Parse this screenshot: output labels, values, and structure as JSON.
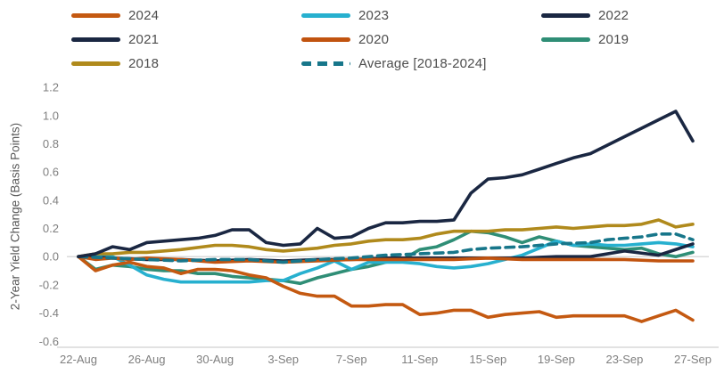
{
  "chart_data": {
    "type": "line",
    "title": "",
    "xlabel": "",
    "ylabel": "2-Year Yield Change (Basis Points)",
    "ylim": [
      -0.6,
      1.2
    ],
    "y_ticks": [
      {
        "value": 1.2,
        "label": "1.2"
      },
      {
        "value": 1.0,
        "label": "1.0"
      },
      {
        "value": 0.8,
        "label": "0.8"
      },
      {
        "value": 0.6,
        "label": "0.6"
      },
      {
        "value": 0.4,
        "label": "0.4"
      },
      {
        "value": 0.2,
        "label": "0.2"
      },
      {
        "value": 0.0,
        "label": "0.0"
      },
      {
        "value": -0.2,
        "label": "-0.2"
      },
      {
        "value": -0.4,
        "label": "-0.4"
      },
      {
        "value": -0.6,
        "label": "-0.6"
      }
    ],
    "x_domain_days": [
      0,
      36
    ],
    "x_ticks": [
      {
        "day": 0,
        "label": "22-Aug"
      },
      {
        "day": 4,
        "label": "26-Aug"
      },
      {
        "day": 8,
        "label": "30-Aug"
      },
      {
        "day": 12,
        "label": "3-Sep"
      },
      {
        "day": 16,
        "label": "7-Sep"
      },
      {
        "day": 20,
        "label": "11-Sep"
      },
      {
        "day": 24,
        "label": "15-Sep"
      },
      {
        "day": 28,
        "label": "19-Sep"
      },
      {
        "day": 32,
        "label": "23-Sep"
      },
      {
        "day": 36,
        "label": "27-Sep"
      }
    ],
    "grid": "zero-line-only",
    "legend_position": "top",
    "axis_line_color": "#d9d9d9",
    "tick_text_color": "#7f7f7f",
    "legend_text_color": "#4d4d4d",
    "draw_order": [
      "2019",
      "2023",
      "2018",
      "2022",
      "2020",
      "2024",
      "Average [2018-2024]",
      "2021"
    ],
    "series": [
      {
        "name": "2024",
        "color": "#C45911",
        "dash": false,
        "points": [
          [
            0,
            0
          ],
          [
            1,
            -0.1
          ],
          [
            2,
            -0.06
          ],
          [
            3,
            -0.04
          ],
          [
            4,
            -0.07
          ],
          [
            5,
            -0.08
          ],
          [
            6,
            -0.12
          ],
          [
            7,
            -0.09
          ],
          [
            8,
            -0.09
          ],
          [
            9,
            -0.1
          ],
          [
            10,
            -0.13
          ],
          [
            11,
            -0.15
          ],
          [
            12,
            -0.21
          ],
          [
            13,
            -0.26
          ],
          [
            14,
            -0.28
          ],
          [
            15,
            -0.28
          ],
          [
            16,
            -0.35
          ],
          [
            17,
            -0.35
          ],
          [
            18,
            -0.34
          ],
          [
            19,
            -0.34
          ],
          [
            20,
            -0.41
          ],
          [
            21,
            -0.4
          ],
          [
            22,
            -0.38
          ],
          [
            23,
            -0.38
          ],
          [
            24,
            -0.43
          ],
          [
            25,
            -0.41
          ],
          [
            26,
            -0.4
          ],
          [
            27,
            -0.39
          ],
          [
            28,
            -0.43
          ],
          [
            29,
            -0.42
          ],
          [
            30,
            -0.42
          ],
          [
            31,
            -0.42
          ],
          [
            32,
            -0.42
          ],
          [
            33,
            -0.46
          ],
          [
            34,
            -0.42
          ],
          [
            35,
            -0.38
          ],
          [
            36,
            -0.45
          ]
        ]
      },
      {
        "name": "2023",
        "color": "#27B0CF",
        "dash": false,
        "points": [
          [
            0,
            0
          ],
          [
            1,
            0.0
          ],
          [
            2,
            0.0
          ],
          [
            3,
            -0.06
          ],
          [
            4,
            -0.13
          ],
          [
            5,
            -0.16
          ],
          [
            6,
            -0.18
          ],
          [
            7,
            -0.18
          ],
          [
            8,
            -0.18
          ],
          [
            9,
            -0.18
          ],
          [
            10,
            -0.18
          ],
          [
            11,
            -0.17
          ],
          [
            12,
            -0.17
          ],
          [
            13,
            -0.12
          ],
          [
            14,
            -0.08
          ],
          [
            15,
            -0.03
          ],
          [
            16,
            -0.09
          ],
          [
            17,
            -0.04
          ],
          [
            18,
            -0.04
          ],
          [
            19,
            -0.04
          ],
          [
            20,
            -0.05
          ],
          [
            21,
            -0.07
          ],
          [
            22,
            -0.08
          ],
          [
            23,
            -0.07
          ],
          [
            24,
            -0.05
          ],
          [
            25,
            -0.02
          ],
          [
            26,
            0.01
          ],
          [
            27,
            0.06
          ],
          [
            28,
            0.11
          ],
          [
            29,
            0.08
          ],
          [
            30,
            0.09
          ],
          [
            31,
            0.08
          ],
          [
            32,
            0.08
          ],
          [
            33,
            0.09
          ],
          [
            34,
            0.1
          ],
          [
            35,
            0.09
          ],
          [
            36,
            0.07
          ]
        ]
      },
      {
        "name": "2022",
        "color": "#1A2742",
        "dash": false,
        "points": [
          [
            0,
            0
          ],
          [
            2,
            -0.01
          ],
          [
            4,
            -0.02
          ],
          [
            6,
            -0.02
          ],
          [
            8,
            -0.03
          ],
          [
            10,
            -0.02
          ],
          [
            12,
            -0.03
          ],
          [
            14,
            -0.02
          ],
          [
            16,
            -0.02
          ],
          [
            18,
            -0.01
          ],
          [
            20,
            -0.01
          ],
          [
            22,
            -0.01
          ],
          [
            24,
            -0.01
          ],
          [
            26,
            -0.01
          ],
          [
            28,
            0.0
          ],
          [
            30,
            0.0
          ],
          [
            32,
            0.04
          ],
          [
            34,
            0.01
          ],
          [
            36,
            0.09
          ]
        ]
      },
      {
        "name": "2021",
        "color": "#1A2742",
        "dash": false,
        "points": [
          [
            0,
            0
          ],
          [
            1,
            0.02
          ],
          [
            2,
            0.07
          ],
          [
            3,
            0.05
          ],
          [
            4,
            0.1
          ],
          [
            5,
            0.11
          ],
          [
            6,
            0.12
          ],
          [
            7,
            0.13
          ],
          [
            8,
            0.15
          ],
          [
            9,
            0.19
          ],
          [
            10,
            0.19
          ],
          [
            11,
            0.1
          ],
          [
            12,
            0.08
          ],
          [
            13,
            0.09
          ],
          [
            14,
            0.2
          ],
          [
            15,
            0.13
          ],
          [
            16,
            0.14
          ],
          [
            17,
            0.2
          ],
          [
            18,
            0.24
          ],
          [
            19,
            0.24
          ],
          [
            20,
            0.25
          ],
          [
            21,
            0.25
          ],
          [
            22,
            0.26
          ],
          [
            23,
            0.45
          ],
          [
            24,
            0.55
          ],
          [
            25,
            0.56
          ],
          [
            26,
            0.58
          ],
          [
            27,
            0.62
          ],
          [
            28,
            0.66
          ],
          [
            29,
            0.7
          ],
          [
            30,
            0.73
          ],
          [
            31,
            0.79
          ],
          [
            32,
            0.85
          ],
          [
            33,
            0.91
          ],
          [
            34,
            0.97
          ],
          [
            35,
            1.03
          ],
          [
            36,
            0.82
          ]
        ]
      },
      {
        "name": "2020",
        "color": "#C1530F",
        "dash": false,
        "points": [
          [
            0,
            0
          ],
          [
            1,
            -0.02
          ],
          [
            2,
            -0.01
          ],
          [
            3,
            -0.02
          ],
          [
            4,
            -0.01
          ],
          [
            6,
            -0.02
          ],
          [
            8,
            -0.04
          ],
          [
            10,
            -0.03
          ],
          [
            12,
            -0.04
          ],
          [
            14,
            -0.03
          ],
          [
            16,
            -0.02
          ],
          [
            18,
            -0.02
          ],
          [
            20,
            -0.02
          ],
          [
            22,
            -0.02
          ],
          [
            24,
            -0.01
          ],
          [
            26,
            -0.02
          ],
          [
            28,
            -0.02
          ],
          [
            30,
            -0.02
          ],
          [
            32,
            -0.02
          ],
          [
            34,
            -0.03
          ],
          [
            36,
            -0.03
          ]
        ]
      },
      {
        "name": "2019",
        "color": "#2F8E76",
        "dash": false,
        "points": [
          [
            0,
            0
          ],
          [
            1,
            -0.09
          ],
          [
            2,
            -0.06
          ],
          [
            3,
            -0.07
          ],
          [
            4,
            -0.09
          ],
          [
            5,
            -0.1
          ],
          [
            6,
            -0.1
          ],
          [
            7,
            -0.12
          ],
          [
            8,
            -0.12
          ],
          [
            9,
            -0.14
          ],
          [
            10,
            -0.15
          ],
          [
            11,
            -0.16
          ],
          [
            12,
            -0.17
          ],
          [
            13,
            -0.19
          ],
          [
            14,
            -0.15
          ],
          [
            15,
            -0.12
          ],
          [
            16,
            -0.09
          ],
          [
            17,
            -0.07
          ],
          [
            18,
            -0.04
          ],
          [
            19,
            -0.02
          ],
          [
            20,
            0.05
          ],
          [
            21,
            0.07
          ],
          [
            22,
            0.12
          ],
          [
            23,
            0.18
          ],
          [
            24,
            0.17
          ],
          [
            25,
            0.14
          ],
          [
            26,
            0.1
          ],
          [
            27,
            0.14
          ],
          [
            28,
            0.11
          ],
          [
            29,
            0.08
          ],
          [
            30,
            0.07
          ],
          [
            31,
            0.06
          ],
          [
            32,
            0.05
          ],
          [
            33,
            0.06
          ],
          [
            34,
            0.02
          ],
          [
            35,
            0.0
          ],
          [
            36,
            0.03
          ]
        ]
      },
      {
        "name": "2018",
        "color": "#B08A1C",
        "dash": false,
        "points": [
          [
            0,
            0
          ],
          [
            1,
            0.02
          ],
          [
            2,
            0.02
          ],
          [
            3,
            0.03
          ],
          [
            4,
            0.03
          ],
          [
            6,
            0.05
          ],
          [
            8,
            0.08
          ],
          [
            9,
            0.08
          ],
          [
            10,
            0.07
          ],
          [
            11,
            0.05
          ],
          [
            12,
            0.04
          ],
          [
            13,
            0.05
          ],
          [
            14,
            0.06
          ],
          [
            15,
            0.08
          ],
          [
            16,
            0.09
          ],
          [
            17,
            0.11
          ],
          [
            18,
            0.12
          ],
          [
            19,
            0.12
          ],
          [
            20,
            0.13
          ],
          [
            21,
            0.16
          ],
          [
            22,
            0.18
          ],
          [
            23,
            0.18
          ],
          [
            24,
            0.18
          ],
          [
            25,
            0.19
          ],
          [
            26,
            0.19
          ],
          [
            27,
            0.2
          ],
          [
            28,
            0.21
          ],
          [
            29,
            0.2
          ],
          [
            30,
            0.21
          ],
          [
            31,
            0.22
          ],
          [
            32,
            0.22
          ],
          [
            33,
            0.23
          ],
          [
            34,
            0.26
          ],
          [
            35,
            0.21
          ],
          [
            36,
            0.23
          ]
        ]
      },
      {
        "name": "Average [2018-2024]",
        "color": "#17768A",
        "dash": true,
        "points": [
          [
            0,
            0
          ],
          [
            2,
            -0.01
          ],
          [
            4,
            -0.02
          ],
          [
            6,
            -0.03
          ],
          [
            8,
            -0.02
          ],
          [
            10,
            -0.02
          ],
          [
            11,
            -0.03
          ],
          [
            12,
            -0.04
          ],
          [
            13,
            -0.03
          ],
          [
            14,
            -0.02
          ],
          [
            16,
            -0.01
          ],
          [
            18,
            0.01
          ],
          [
            20,
            0.02
          ],
          [
            22,
            0.03
          ],
          [
            23,
            0.05
          ],
          [
            24,
            0.06
          ],
          [
            26,
            0.07
          ],
          [
            28,
            0.09
          ],
          [
            30,
            0.1
          ],
          [
            31,
            0.12
          ],
          [
            32,
            0.13
          ],
          [
            33,
            0.14
          ],
          [
            34,
            0.16
          ],
          [
            35,
            0.16
          ],
          [
            36,
            0.12
          ]
        ]
      }
    ]
  }
}
